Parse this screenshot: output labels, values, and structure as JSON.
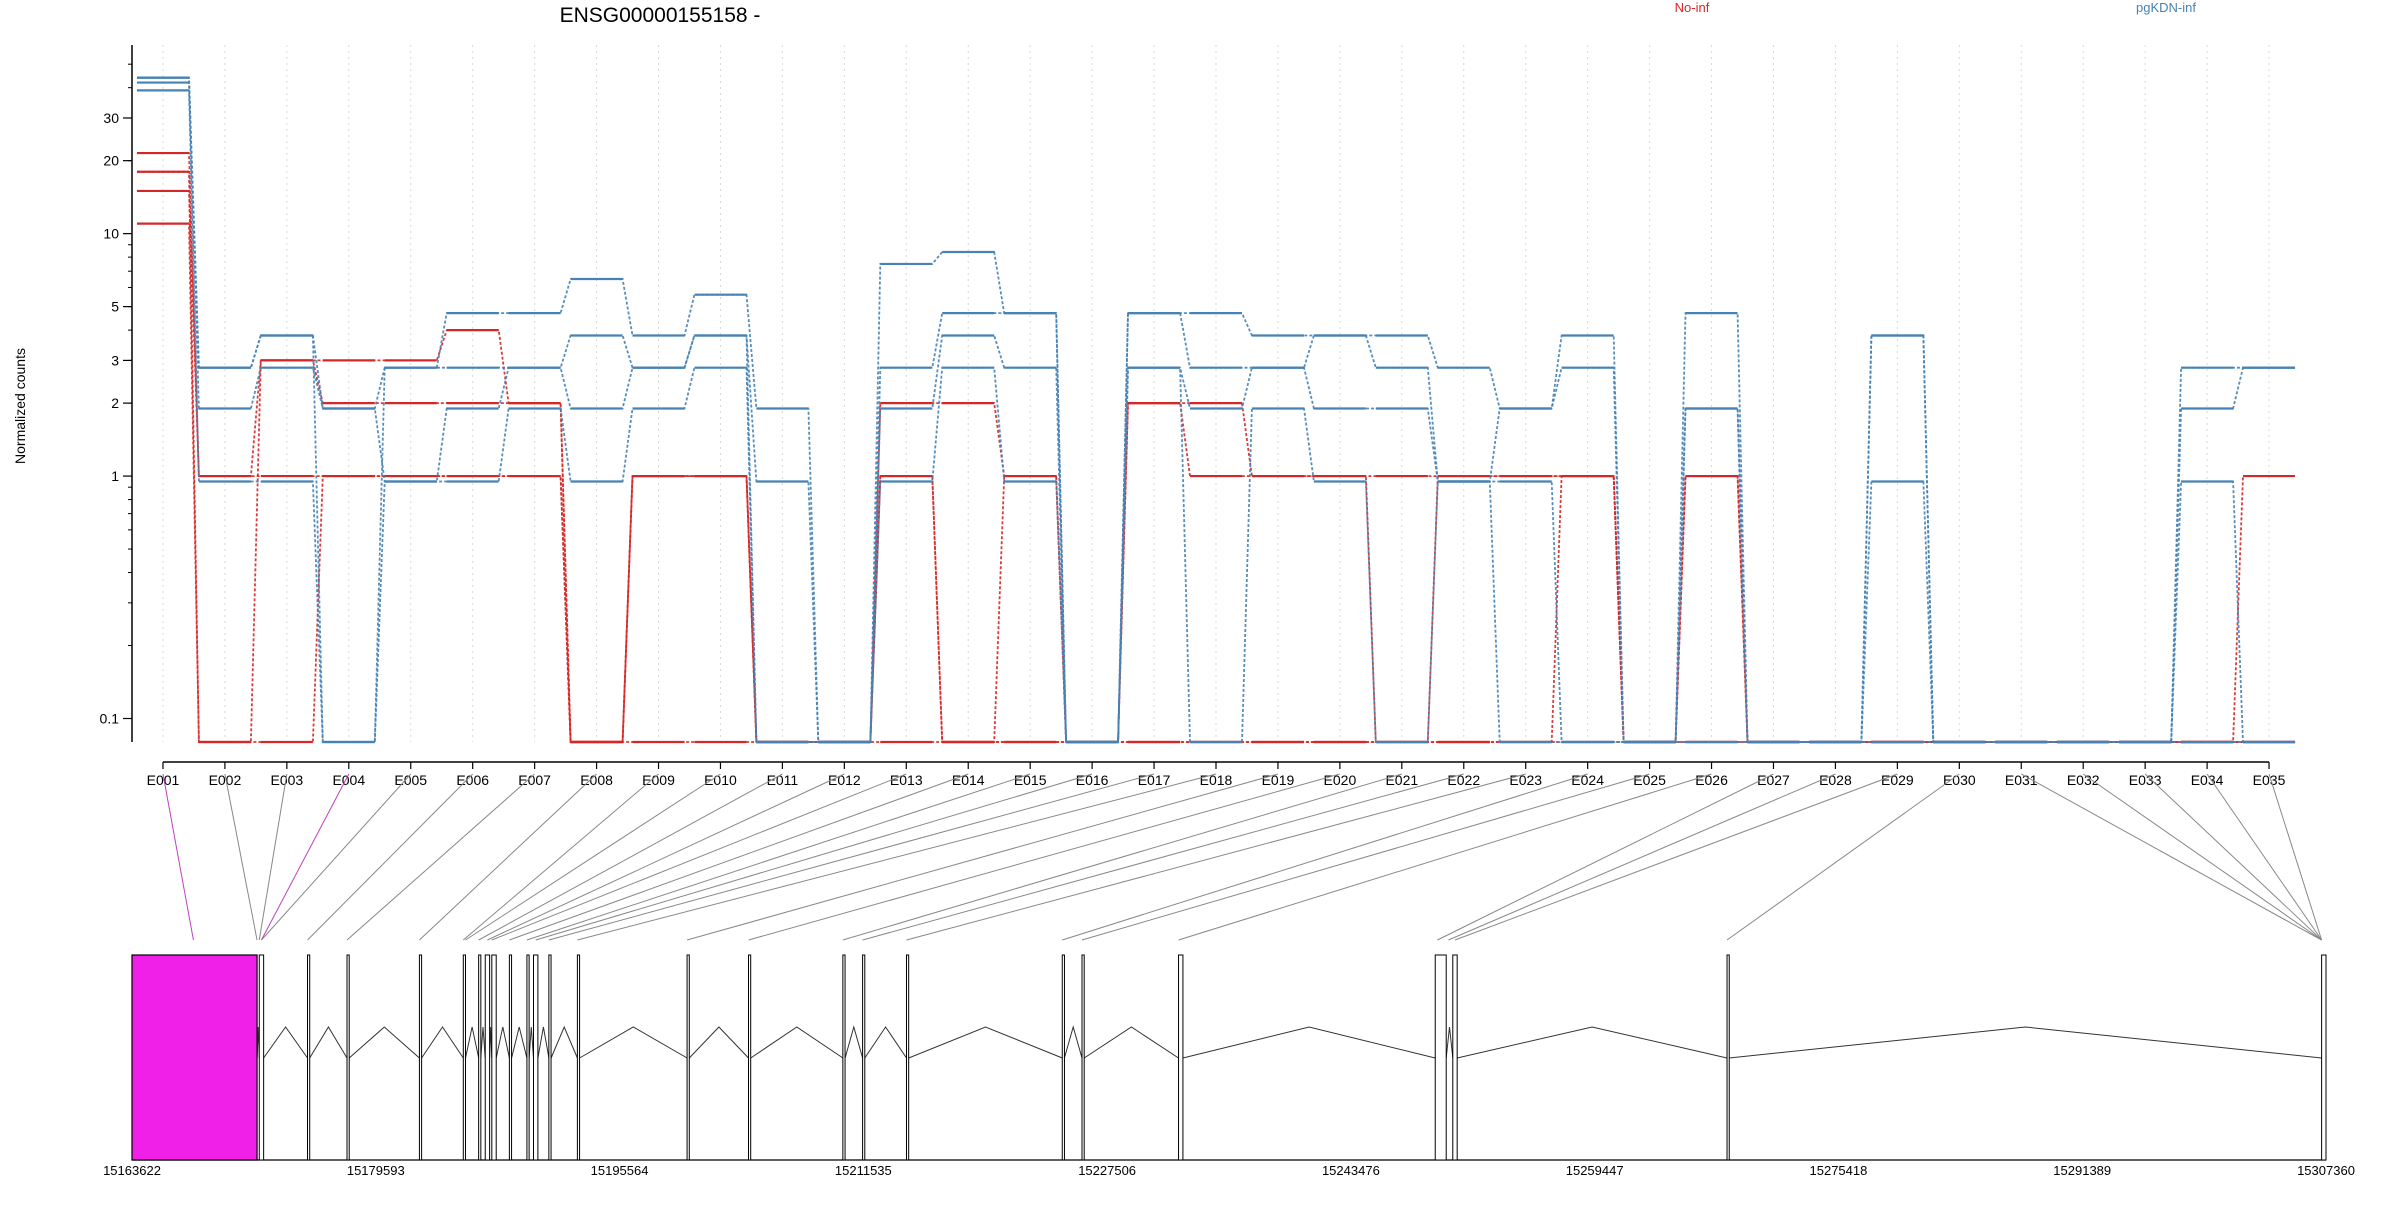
{
  "chart_data": {
    "type": "line",
    "title": "ENSG00000155158 -",
    "ylabel": "Normalized counts",
    "y_scale": "log",
    "y_ticks": [
      {
        "value": 0.1,
        "label": "0.1"
      },
      {
        "value": 1,
        "label": "1"
      },
      {
        "value": 2,
        "label": "2"
      },
      {
        "value": 3,
        "label": "3"
      },
      {
        "value": 5,
        "label": "5"
      },
      {
        "value": 10,
        "label": "10"
      },
      {
        "value": 20,
        "label": "20"
      },
      {
        "value": 30,
        "label": "30"
      }
    ],
    "ylim": [
      0.08,
      60
    ],
    "grid": "vertical dotted",
    "legend": [
      {
        "name": "No-inf",
        "color": "#d62728",
        "position": "top-center"
      },
      {
        "name": "pgKDN-inf",
        "color": "#4682b4",
        "position": "top-right"
      }
    ],
    "categories": [
      "E001",
      "E002",
      "E003",
      "E004",
      "E005",
      "E006",
      "E007",
      "E008",
      "E009",
      "E010",
      "E011",
      "E012",
      "E013",
      "E014",
      "E015",
      "E016",
      "E017",
      "E018",
      "E019",
      "E020",
      "E021",
      "E022",
      "E023",
      "E024",
      "E025",
      "E026",
      "E027",
      "E028",
      "E029",
      "E030",
      "E031",
      "E032",
      "E033",
      "E034",
      "E035"
    ],
    "series": [
      {
        "group": "No-inf",
        "color": "#d62728",
        "values": [
          21.5,
          1,
          3,
          3,
          3,
          4,
          2,
          0.08,
          1,
          1,
          0.08,
          0.08,
          2,
          2,
          1,
          0.08,
          2,
          2,
          1,
          1,
          1,
          1,
          1,
          1,
          0.08,
          1,
          0.08,
          0.08,
          0.08,
          0.08,
          0.08,
          0.08,
          0.08,
          0.08,
          1
        ]
      },
      {
        "group": "No-inf",
        "color": "#d62728",
        "values": [
          18,
          0.08,
          3,
          2,
          2,
          2,
          2,
          0.08,
          1,
          1,
          0.08,
          0.08,
          1,
          0.08,
          1,
          0.08,
          2,
          1,
          1,
          1,
          0.08,
          1,
          1,
          1,
          0.08,
          1,
          0.08,
          0.08,
          0.08,
          0.08,
          0.08,
          0.08,
          0.08,
          0.08,
          0.08
        ]
      },
      {
        "group": "No-inf",
        "color": "#d62728",
        "values": [
          15,
          1,
          1,
          1,
          1,
          1,
          1,
          0.08,
          1,
          1,
          0.08,
          0.08,
          1,
          0.08,
          0.08,
          0.08,
          0.08,
          0.08,
          0.08,
          0.08,
          0.08,
          0.08,
          0.08,
          1,
          0.08,
          0.08,
          0.08,
          0.08,
          0.08,
          0.08,
          0.08,
          0.08,
          0.08,
          0.08,
          0.08
        ]
      },
      {
        "group": "No-inf",
        "color": "#d62728",
        "values": [
          11,
          0.08,
          0.08,
          1,
          1,
          1,
          1,
          0.08,
          0.08,
          0.08,
          0.08,
          0.08,
          0.08,
          0.08,
          0.08,
          0.08,
          0.08,
          0.08,
          0.08,
          0.08,
          0.08,
          0.08,
          0.08,
          0.08,
          0.08,
          0.08,
          0.08,
          0.08,
          0.08,
          0.08,
          0.08,
          0.08,
          0.08,
          0.08,
          0.08
        ]
      },
      {
        "group": "pgKDN-inf",
        "color": "#4682b4",
        "values": [
          44,
          2.8,
          3.8,
          0.08,
          2.8,
          4.7,
          4.7,
          6.5,
          3.8,
          5.6,
          1.9,
          0.08,
          7.5,
          8.4,
          4.7,
          0.08,
          4.7,
          4.7,
          3.8,
          3.8,
          3.8,
          2.8,
          1.9,
          3.8,
          0.08,
          4.7,
          0.08,
          0.08,
          3.8,
          0.08,
          0.08,
          0.08,
          0.08,
          2.8,
          2.8
        ]
      },
      {
        "group": "pgKDN-inf",
        "color": "#4682b4",
        "values": [
          42,
          2.8,
          3.8,
          1.9,
          2.8,
          2.8,
          2.8,
          3.8,
          2.8,
          3.8,
          0.95,
          0.08,
          2.8,
          4.7,
          4.7,
          0.08,
          4.7,
          2.8,
          2.8,
          3.8,
          2.8,
          0.95,
          1.9,
          2.8,
          0.08,
          1.9,
          0.08,
          0.08,
          3.8,
          0.08,
          0.08,
          0.08,
          0.08,
          1.9,
          2.8
        ]
      },
      {
        "group": "pgKDN-inf",
        "color": "#4682b4",
        "values": [
          44,
          1.9,
          2.8,
          1.9,
          0.95,
          1.9,
          2.8,
          1.9,
          2.8,
          3.8,
          0.08,
          0.08,
          1.9,
          3.8,
          2.8,
          0.08,
          2.8,
          1.9,
          2.8,
          1.9,
          1.9,
          0.95,
          0.95,
          0.08,
          0.08,
          1.9,
          0.08,
          0.08,
          0.95,
          0.08,
          0.08,
          0.08,
          0.08,
          0.95,
          0.08
        ]
      },
      {
        "group": "pgKDN-inf",
        "color": "#4682b4",
        "values": [
          39,
          0.95,
          0.95,
          0.08,
          0.95,
          0.95,
          1.9,
          0.95,
          1.9,
          2.8,
          0.08,
          0.08,
          0.95,
          2.8,
          0.95,
          0.08,
          2.8,
          0.08,
          1.9,
          0.95,
          0.08,
          0.95,
          0.08,
          0.08,
          0.08,
          0.08,
          0.08,
          0.08,
          0.08,
          0.08,
          0.08,
          0.08,
          0.08,
          0.08,
          0.08
        ]
      }
    ],
    "gene_model": {
      "axis_labels": [
        "15163622",
        "15179593",
        "15195564",
        "15211535",
        "15227506",
        "15243476",
        "15259447",
        "15275418",
        "15291389",
        "15307360"
      ],
      "exon_boxes": [
        [
          0.0,
          0.057
        ],
        [
          0.058,
          0.06
        ],
        [
          0.08,
          0.081
        ],
        [
          0.098,
          0.099
        ],
        [
          0.131,
          0.132
        ],
        [
          0.151,
          0.152
        ],
        [
          0.158,
          0.159
        ],
        [
          0.161,
          0.163
        ],
        [
          0.164,
          0.166
        ],
        [
          0.172,
          0.173
        ],
        [
          0.18,
          0.181
        ],
        [
          0.183,
          0.185
        ],
        [
          0.19,
          0.191
        ],
        [
          0.203,
          0.204
        ],
        [
          0.253,
          0.254
        ],
        [
          0.281,
          0.282
        ],
        [
          0.324,
          0.325
        ],
        [
          0.333,
          0.334
        ],
        [
          0.353,
          0.354
        ],
        [
          0.424,
          0.425
        ],
        [
          0.433,
          0.434
        ],
        [
          0.477,
          0.479
        ],
        [
          0.594,
          0.599
        ],
        [
          0.602,
          0.604
        ],
        [
          0.727,
          0.728
        ],
        [
          0.998,
          1.0
        ]
      ],
      "highlight_box": 0,
      "highlight_color": "#f020e8",
      "connector_targets": [
        0.028,
        0.057,
        0.058,
        0.059,
        0.059,
        0.08,
        0.098,
        0.131,
        0.151,
        0.152,
        0.158,
        0.162,
        0.164,
        0.172,
        0.18,
        0.184,
        0.19,
        0.203,
        0.253,
        0.281,
        0.324,
        0.333,
        0.353,
        0.424,
        0.433,
        0.477,
        0.595,
        0.6,
        0.603,
        0.727,
        0.998
      ]
    }
  }
}
